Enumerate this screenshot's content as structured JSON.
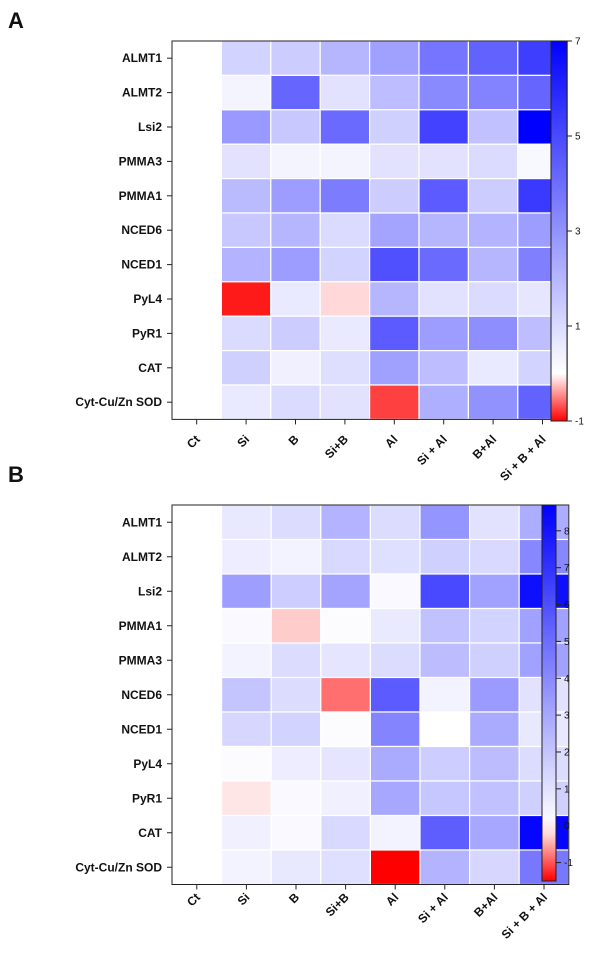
{
  "chart_data": [
    {
      "panel": "A",
      "type": "heatmap",
      "columns": [
        "Ct",
        "Si",
        "B",
        "Si+B",
        "Al",
        "Si + Al",
        "B+Al",
        "Si + B + Al"
      ],
      "rows": [
        "ALMT1",
        "ALMT2",
        "Lsi2",
        "PMMA3",
        "PMMA1",
        "NCED6",
        "NCED1",
        "PyL4",
        "PyR1",
        "CAT",
        "Cyt-Cu/Zn SOD"
      ],
      "values": [
        [
          0,
          1.2,
          1.4,
          2.0,
          2.6,
          3.8,
          4.3,
          5.3
        ],
        [
          0,
          0.3,
          4.2,
          0.8,
          1.8,
          3.2,
          3.4,
          4.2
        ],
        [
          0,
          2.8,
          1.5,
          4.1,
          1.3,
          5.2,
          1.7,
          7.0
        ],
        [
          0,
          0.8,
          0.3,
          0.3,
          0.8,
          0.8,
          1.0,
          0.2
        ],
        [
          0,
          1.9,
          2.7,
          3.6,
          1.4,
          4.5,
          1.4,
          5.4
        ],
        [
          0,
          1.5,
          2.0,
          1.0,
          2.5,
          2.0,
          2.1,
          2.7
        ],
        [
          0,
          2.1,
          2.7,
          1.2,
          4.8,
          4.1,
          2.0,
          3.5
        ],
        [
          0,
          -0.9,
          0.6,
          -0.15,
          2.0,
          0.8,
          1.0,
          0.7
        ],
        [
          0,
          1.0,
          1.4,
          0.6,
          4.5,
          2.7,
          3.1,
          1.8
        ],
        [
          0,
          1.3,
          0.4,
          0.9,
          2.6,
          1.8,
          0.6,
          1.2
        ],
        [
          0,
          0.6,
          1.0,
          0.8,
          -0.75,
          2.2,
          3.0,
          4.3
        ]
      ],
      "colorbar": {
        "min": -1,
        "max": 7,
        "ticks": [
          -1,
          1,
          3,
          5,
          7
        ]
      },
      "colors": {
        "low": "#ff0000",
        "mid": "#ffffff",
        "high": "#0000ff",
        "mid_value": 0
      }
    },
    {
      "panel": "B",
      "type": "heatmap",
      "columns": [
        "Ct",
        "Si",
        "B",
        "Si+B",
        "Al",
        "Si + Al",
        "B+Al",
        "Si + B + Al"
      ],
      "rows": [
        "ALMT1",
        "ALMT2",
        "Lsi2",
        "PMMA1",
        "PMMA3",
        "NCED6",
        "NCED1",
        "PyL4",
        "PyR1",
        "CAT",
        "Cyt-Cu/Zn SOD"
      ],
      "values": [
        [
          0,
          0.8,
          1.2,
          2.6,
          1.2,
          3.6,
          1.0,
          2.8
        ],
        [
          0,
          0.6,
          0.4,
          1.3,
          1.1,
          1.6,
          1.3,
          4.1
        ],
        [
          0,
          3.3,
          1.7,
          3.1,
          0.2,
          6.2,
          3.2,
          8.2
        ],
        [
          0,
          0.2,
          -0.3,
          0.1,
          0.7,
          2.1,
          1.5,
          3.2
        ],
        [
          0,
          0.4,
          1.2,
          0.9,
          1.2,
          2.3,
          1.6,
          3.2
        ],
        [
          0,
          2.0,
          1.2,
          -0.85,
          5.6,
          0.4,
          3.4,
          1.0
        ],
        [
          0,
          1.4,
          1.5,
          0.1,
          4.2,
          0.0,
          2.9,
          0.8
        ],
        [
          0,
          0.1,
          0.6,
          0.9,
          2.9,
          1.7,
          2.3,
          1.2
        ],
        [
          0,
          -0.15,
          0.2,
          0.5,
          3.0,
          1.9,
          2.1,
          1.6
        ],
        [
          0,
          0.5,
          0.2,
          1.3,
          0.4,
          5.5,
          3.0,
          8.5
        ],
        [
          0,
          0.4,
          0.8,
          1.1,
          -1.5,
          2.6,
          1.4,
          4.6
        ]
      ],
      "colorbar": {
        "min": -1.5,
        "max": 8.7,
        "ticks": [
          -1,
          0,
          1,
          2,
          3,
          4,
          5,
          6,
          7,
          8
        ]
      },
      "colors": {
        "low": "#ff0000",
        "mid": "#ffffff",
        "high": "#0000ff",
        "mid_value": 0
      }
    }
  ]
}
